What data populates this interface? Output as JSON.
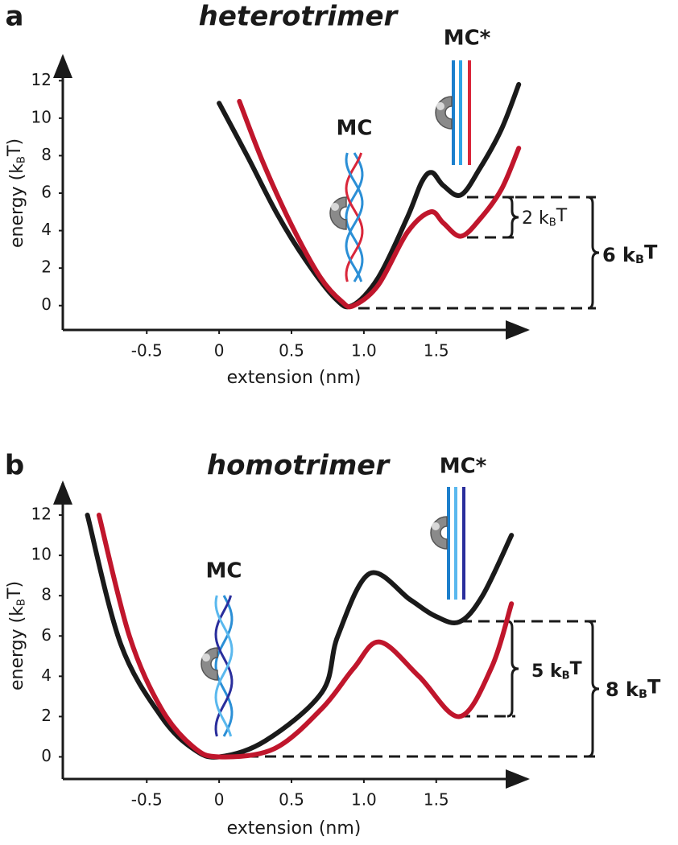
{
  "chart_data": [
    {
      "type": "line",
      "panel_label": "a",
      "title": "heterotrimer",
      "x_label": "extension (nm)",
      "y_label": [
        "energy (k",
        "B",
        "T)"
      ],
      "xlim": [
        -1.08,
        2.13
      ],
      "ylim": [
        -1.3,
        13.3
      ],
      "xticks": [
        -0.5,
        0,
        0.5,
        {
          "value": 1,
          "label": "1.0"
        },
        1.5
      ],
      "yticks": [
        0,
        2,
        4,
        6,
        8,
        10,
        12
      ],
      "series": [
        {
          "color": "#1a1a1a",
          "x": [
            0,
            0.2,
            0.4,
            0.6,
            0.8,
            0.92,
            1.1,
            1.3,
            1.4,
            1.47,
            1.55,
            1.67,
            1.8,
            1.95,
            2.07
          ],
          "values": [
            10.8,
            7.9,
            4.9,
            2.4,
            0.4,
            0,
            1.5,
            4.7,
            6.6,
            7.1,
            6.4,
            5.9,
            7.3,
            9.4,
            11.8
          ]
        },
        {
          "color": "#c0162c",
          "x": [
            0.14,
            0.3,
            0.5,
            0.7,
            0.85,
            0.93,
            1.1,
            1.3,
            1.46,
            1.55,
            1.67,
            1.8,
            1.95,
            2.07
          ],
          "values": [
            10.9,
            7.7,
            4.3,
            1.5,
            0.2,
            0,
            1.1,
            3.9,
            5.0,
            4.4,
            3.7,
            4.6,
            6.2,
            8.4
          ]
        }
      ],
      "annotations": [
        "MC",
        "MC*",
        [
          "2 k",
          "B",
          "T"
        ],
        [
          "6 k",
          "B",
          "T"
        ]
      ]
    },
    {
      "type": "line",
      "panel_label": "b",
      "title": "homotrimer",
      "x_label": "extension (nm)",
      "y_label": [
        "energy (k",
        "B",
        "T)"
      ],
      "xlim": [
        -1.08,
        2.13
      ],
      "ylim": [
        -1.1,
        13.6
      ],
      "xticks": [
        -0.5,
        0,
        0.5,
        {
          "value": 1,
          "label": "1.0"
        },
        1.5
      ],
      "yticks": [
        0,
        2,
        4,
        6,
        8,
        10,
        12
      ],
      "series": [
        {
          "color": "#1a1a1a",
          "x": [
            -0.91,
            -0.68,
            -0.4,
            -0.18,
            0,
            0.32,
            0.71,
            0.82,
            1.04,
            1.32,
            1.49,
            1.66,
            1.82,
            2.02
          ],
          "values": [
            12,
            5.6,
            2.0,
            0.4,
            0,
            0.8,
            3.2,
            6.0,
            9.1,
            7.8,
            7.0,
            6.7,
            8.0,
            11
          ]
        },
        {
          "color": "#c0162c",
          "x": [
            -0.83,
            -0.62,
            -0.4,
            -0.18,
            0,
            0.38,
            0.71,
            0.93,
            1.11,
            1.38,
            1.66,
            1.88,
            2.02
          ],
          "values": [
            12,
            6.0,
            2.4,
            0.5,
            0,
            0.4,
            2.4,
            4.4,
            5.7,
            4.0,
            2.0,
            4.4,
            7.6
          ]
        }
      ],
      "annotations": [
        "MC",
        "MC*",
        [
          "5 k",
          "B",
          "T"
        ],
        [
          "8 k",
          "B",
          "T"
        ]
      ]
    }
  ]
}
